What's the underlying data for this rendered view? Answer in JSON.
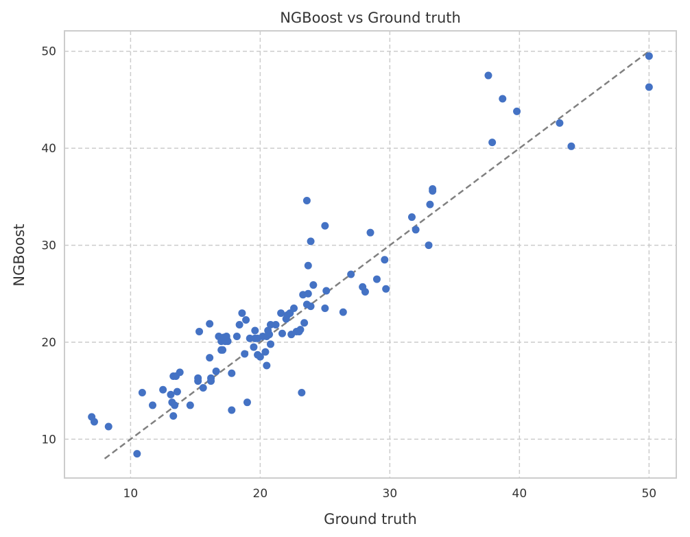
{
  "chart_data": {
    "type": "scatter",
    "title": "NGBoost vs Ground truth",
    "xlabel": "Ground truth",
    "ylabel": "NGBoost",
    "xlim": [
      4.9,
      52.1
    ],
    "ylim": [
      6.0,
      52.1
    ],
    "xticks": [
      10,
      20,
      30,
      40,
      50
    ],
    "yticks": [
      10,
      20,
      30,
      40,
      50
    ],
    "grid": true,
    "point_color": "#4472c4",
    "reference_line": {
      "x": [
        8,
        50
      ],
      "y": [
        8,
        50
      ],
      "color": "#808080",
      "style": "dashed"
    },
    "points": [
      [
        7.0,
        12.3
      ],
      [
        7.2,
        11.8
      ],
      [
        8.3,
        11.3
      ],
      [
        10.5,
        8.5
      ],
      [
        10.9,
        14.8
      ],
      [
        11.7,
        13.5
      ],
      [
        12.5,
        15.1
      ],
      [
        13.1,
        14.6
      ],
      [
        13.2,
        13.8
      ],
      [
        13.3,
        16.5
      ],
      [
        13.5,
        16.5
      ],
      [
        13.3,
        12.4
      ],
      [
        13.4,
        13.5
      ],
      [
        13.6,
        14.9
      ],
      [
        13.8,
        16.9
      ],
      [
        14.6,
        13.5
      ],
      [
        15.3,
        21.1
      ],
      [
        15.2,
        16.3
      ],
      [
        15.2,
        16.0
      ],
      [
        15.6,
        15.3
      ],
      [
        16.1,
        21.9
      ],
      [
        16.1,
        18.4
      ],
      [
        16.2,
        16.3
      ],
      [
        16.2,
        16.0
      ],
      [
        16.6,
        17.0
      ],
      [
        16.8,
        20.6
      ],
      [
        17.0,
        19.2
      ],
      [
        17.0,
        20.1
      ],
      [
        17.1,
        19.2
      ],
      [
        17.2,
        20.5
      ],
      [
        17.3,
        20.1
      ],
      [
        17.4,
        20.6
      ],
      [
        17.4,
        20.4
      ],
      [
        17.5,
        20.1
      ],
      [
        17.8,
        16.8
      ],
      [
        17.8,
        13.0
      ],
      [
        18.2,
        20.6
      ],
      [
        18.4,
        21.8
      ],
      [
        18.6,
        23.0
      ],
      [
        18.8,
        18.8
      ],
      [
        18.9,
        22.3
      ],
      [
        19.0,
        13.8
      ],
      [
        19.2,
        20.4
      ],
      [
        19.5,
        19.5
      ],
      [
        19.6,
        21.2
      ],
      [
        19.6,
        20.4
      ],
      [
        19.8,
        18.7
      ],
      [
        19.8,
        20.4
      ],
      [
        20.0,
        18.5
      ],
      [
        20.2,
        20.6
      ],
      [
        20.4,
        19.0
      ],
      [
        20.5,
        17.6
      ],
      [
        20.6,
        21.2
      ],
      [
        20.5,
        20.6
      ],
      [
        20.7,
        20.8
      ],
      [
        20.8,
        19.8
      ],
      [
        20.8,
        21.8
      ],
      [
        21.2,
        21.8
      ],
      [
        21.6,
        23.0
      ],
      [
        21.7,
        20.9
      ],
      [
        22.0,
        22.4
      ],
      [
        22.1,
        22.8
      ],
      [
        22.3,
        23.0
      ],
      [
        22.4,
        20.8
      ],
      [
        22.6,
        23.5
      ],
      [
        22.8,
        21.1
      ],
      [
        23.0,
        21.1
      ],
      [
        23.1,
        21.3
      ],
      [
        23.2,
        14.8
      ],
      [
        23.3,
        24.9
      ],
      [
        23.4,
        22.0
      ],
      [
        23.6,
        34.6
      ],
      [
        23.6,
        23.9
      ],
      [
        23.7,
        25.0
      ],
      [
        23.7,
        27.9
      ],
      [
        23.9,
        23.7
      ],
      [
        23.9,
        30.4
      ],
      [
        24.1,
        25.9
      ],
      [
        25.0,
        23.5
      ],
      [
        25.0,
        32.0
      ],
      [
        25.1,
        25.3
      ],
      [
        26.4,
        23.1
      ],
      [
        27.0,
        27.0
      ],
      [
        27.9,
        25.7
      ],
      [
        28.1,
        25.2
      ],
      [
        28.5,
        31.3
      ],
      [
        29.0,
        26.5
      ],
      [
        29.6,
        28.5
      ],
      [
        29.7,
        25.5
      ],
      [
        31.7,
        32.9
      ],
      [
        32.0,
        31.6
      ],
      [
        33.0,
        30.0
      ],
      [
        33.1,
        34.2
      ],
      [
        33.3,
        35.6
      ],
      [
        33.3,
        35.8
      ],
      [
        37.6,
        47.5
      ],
      [
        37.9,
        40.6
      ],
      [
        38.7,
        45.1
      ],
      [
        39.8,
        43.8
      ],
      [
        43.1,
        42.6
      ],
      [
        44.0,
        40.2
      ],
      [
        50.0,
        49.5
      ],
      [
        50.0,
        46.3
      ]
    ]
  }
}
